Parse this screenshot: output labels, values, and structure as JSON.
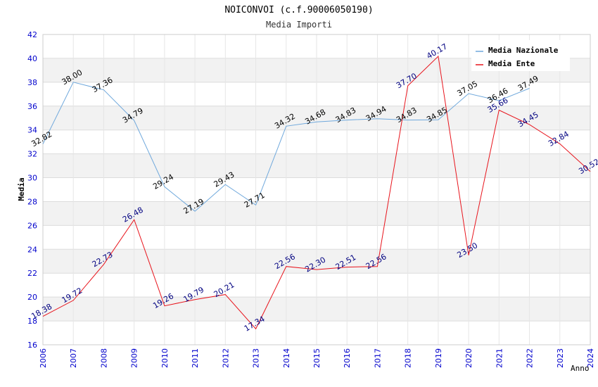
{
  "chart_data": {
    "type": "line",
    "title": "NOICONVOI (c.f.90006050190)",
    "subtitle": "Media Importi",
    "xlabel": "Anno",
    "ylabel": "Media",
    "ylim": [
      16,
      42
    ],
    "y_ticks": [
      16,
      18,
      20,
      22,
      24,
      26,
      28,
      30,
      32,
      34,
      36,
      38,
      40,
      42
    ],
    "grid": true,
    "legend_position": "top-right",
    "categories": [
      "2006",
      "2007",
      "2008",
      "2009",
      "2010",
      "2011",
      "2012",
      "2013",
      "2014",
      "2015",
      "2016",
      "2017",
      "2018",
      "2019",
      "2020",
      "2021",
      "2022",
      "2023",
      "2024"
    ],
    "series": [
      {
        "name": "Media Nazionale",
        "color": "#6fa8dc",
        "label_color": "#000000",
        "values": [
          32.82,
          38.0,
          37.36,
          34.79,
          29.24,
          27.19,
          29.43,
          27.71,
          34.32,
          34.68,
          34.83,
          34.94,
          34.83,
          34.85,
          37.05,
          36.46,
          37.49,
          null,
          null
        ],
        "labels": [
          "32.82",
          "38.00",
          "37.36",
          "34.79",
          "29.24",
          "27.19",
          "29.43",
          "27.71",
          "34.32",
          "34.68",
          "34.83",
          "34.94",
          "34.83",
          "34.85",
          "37.05",
          "36.46",
          "37.49",
          "",
          ""
        ]
      },
      {
        "name": "Media Ente",
        "color": "#e8141c",
        "label_color": "#000080",
        "values": [
          18.38,
          19.72,
          22.73,
          26.48,
          19.26,
          19.79,
          20.21,
          17.34,
          22.56,
          22.3,
          22.51,
          22.56,
          37.7,
          40.17,
          23.5,
          35.66,
          34.45,
          32.84,
          30.52
        ],
        "labels": [
          "18.38",
          "19.72",
          "22.73",
          "26.48",
          "19.26",
          "19.79",
          "20.21",
          "17.34",
          "22.56",
          "22.30",
          "22.51",
          "22.56",
          "37.70",
          "40.17",
          "23.50",
          "35.66",
          "34.45",
          "32.84",
          "30.52"
        ]
      }
    ]
  }
}
